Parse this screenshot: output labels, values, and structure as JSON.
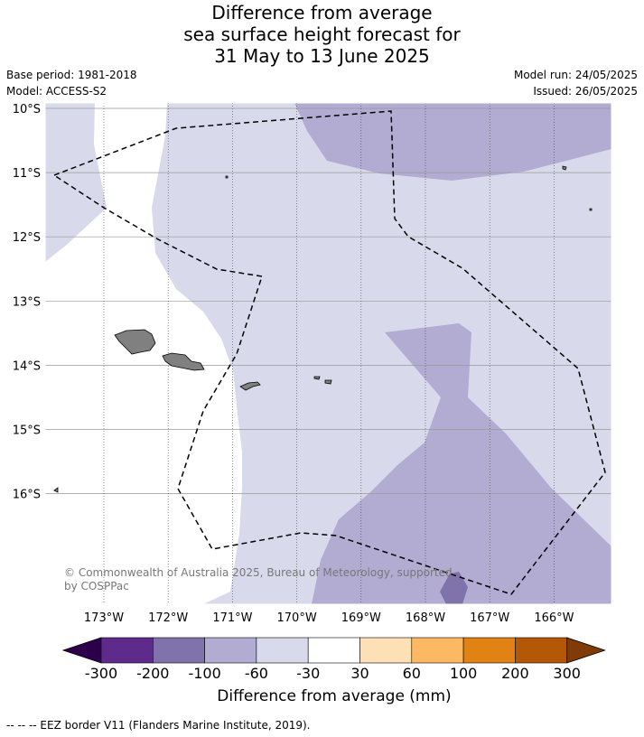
{
  "title": {
    "line1": "Difference from average",
    "line2": "sea surface height forecast for",
    "line3": "31 May to 13 June 2025"
  },
  "meta_left": {
    "base_period": "Base period: 1981-2018",
    "model": "Model: ACCESS-S2"
  },
  "meta_right": {
    "model_run": "Model run: 24/05/2025",
    "issued": "Issued: 26/05/2025"
  },
  "map": {
    "lon_range": [
      -173.9,
      -165.1
    ],
    "lat_range": [
      -10.0,
      -17.8
    ],
    "lat_ticks": [
      {
        "value": -10,
        "label": "10°S"
      },
      {
        "value": -11,
        "label": "11°S"
      },
      {
        "value": -12,
        "label": "12°S"
      },
      {
        "value": -13,
        "label": "13°S"
      },
      {
        "value": -14,
        "label": "14°S"
      },
      {
        "value": -15,
        "label": "15°S"
      },
      {
        "value": -16,
        "label": "16°S"
      }
    ],
    "lon_ticks": [
      {
        "value": -173,
        "label": "173°W"
      },
      {
        "value": -172,
        "label": "172°W"
      },
      {
        "value": -171,
        "label": "171°W"
      },
      {
        "value": -170,
        "label": "170°W"
      },
      {
        "value": -169,
        "label": "169°W"
      },
      {
        "value": -168,
        "label": "168°W"
      },
      {
        "value": -167,
        "label": "167°W"
      },
      {
        "value": -166,
        "label": "166°W"
      }
    ],
    "copyright_line1": "© Commonwealth of Australia 2025, Bureau of Meteorology, supported",
    "copyright_line2": "by COSPPac",
    "land_color": "#808080"
  },
  "colorbar": {
    "title": "Difference from average (mm)",
    "tick_labels": [
      "-300",
      "-200",
      "-100",
      "-60",
      "-30",
      "30",
      "60",
      "100",
      "200",
      "300"
    ],
    "colors": [
      "#2d004b",
      "#5e2a8c",
      "#8073ac",
      "#b2abd2",
      "#d8daeb",
      "#ffffff",
      "#fee0b6",
      "#fdb863",
      "#e08214",
      "#b35806",
      "#7f3b08"
    ]
  },
  "footnote": "--  --  -- EEZ border V11 (Flanders Marine Institute, 2019)."
}
